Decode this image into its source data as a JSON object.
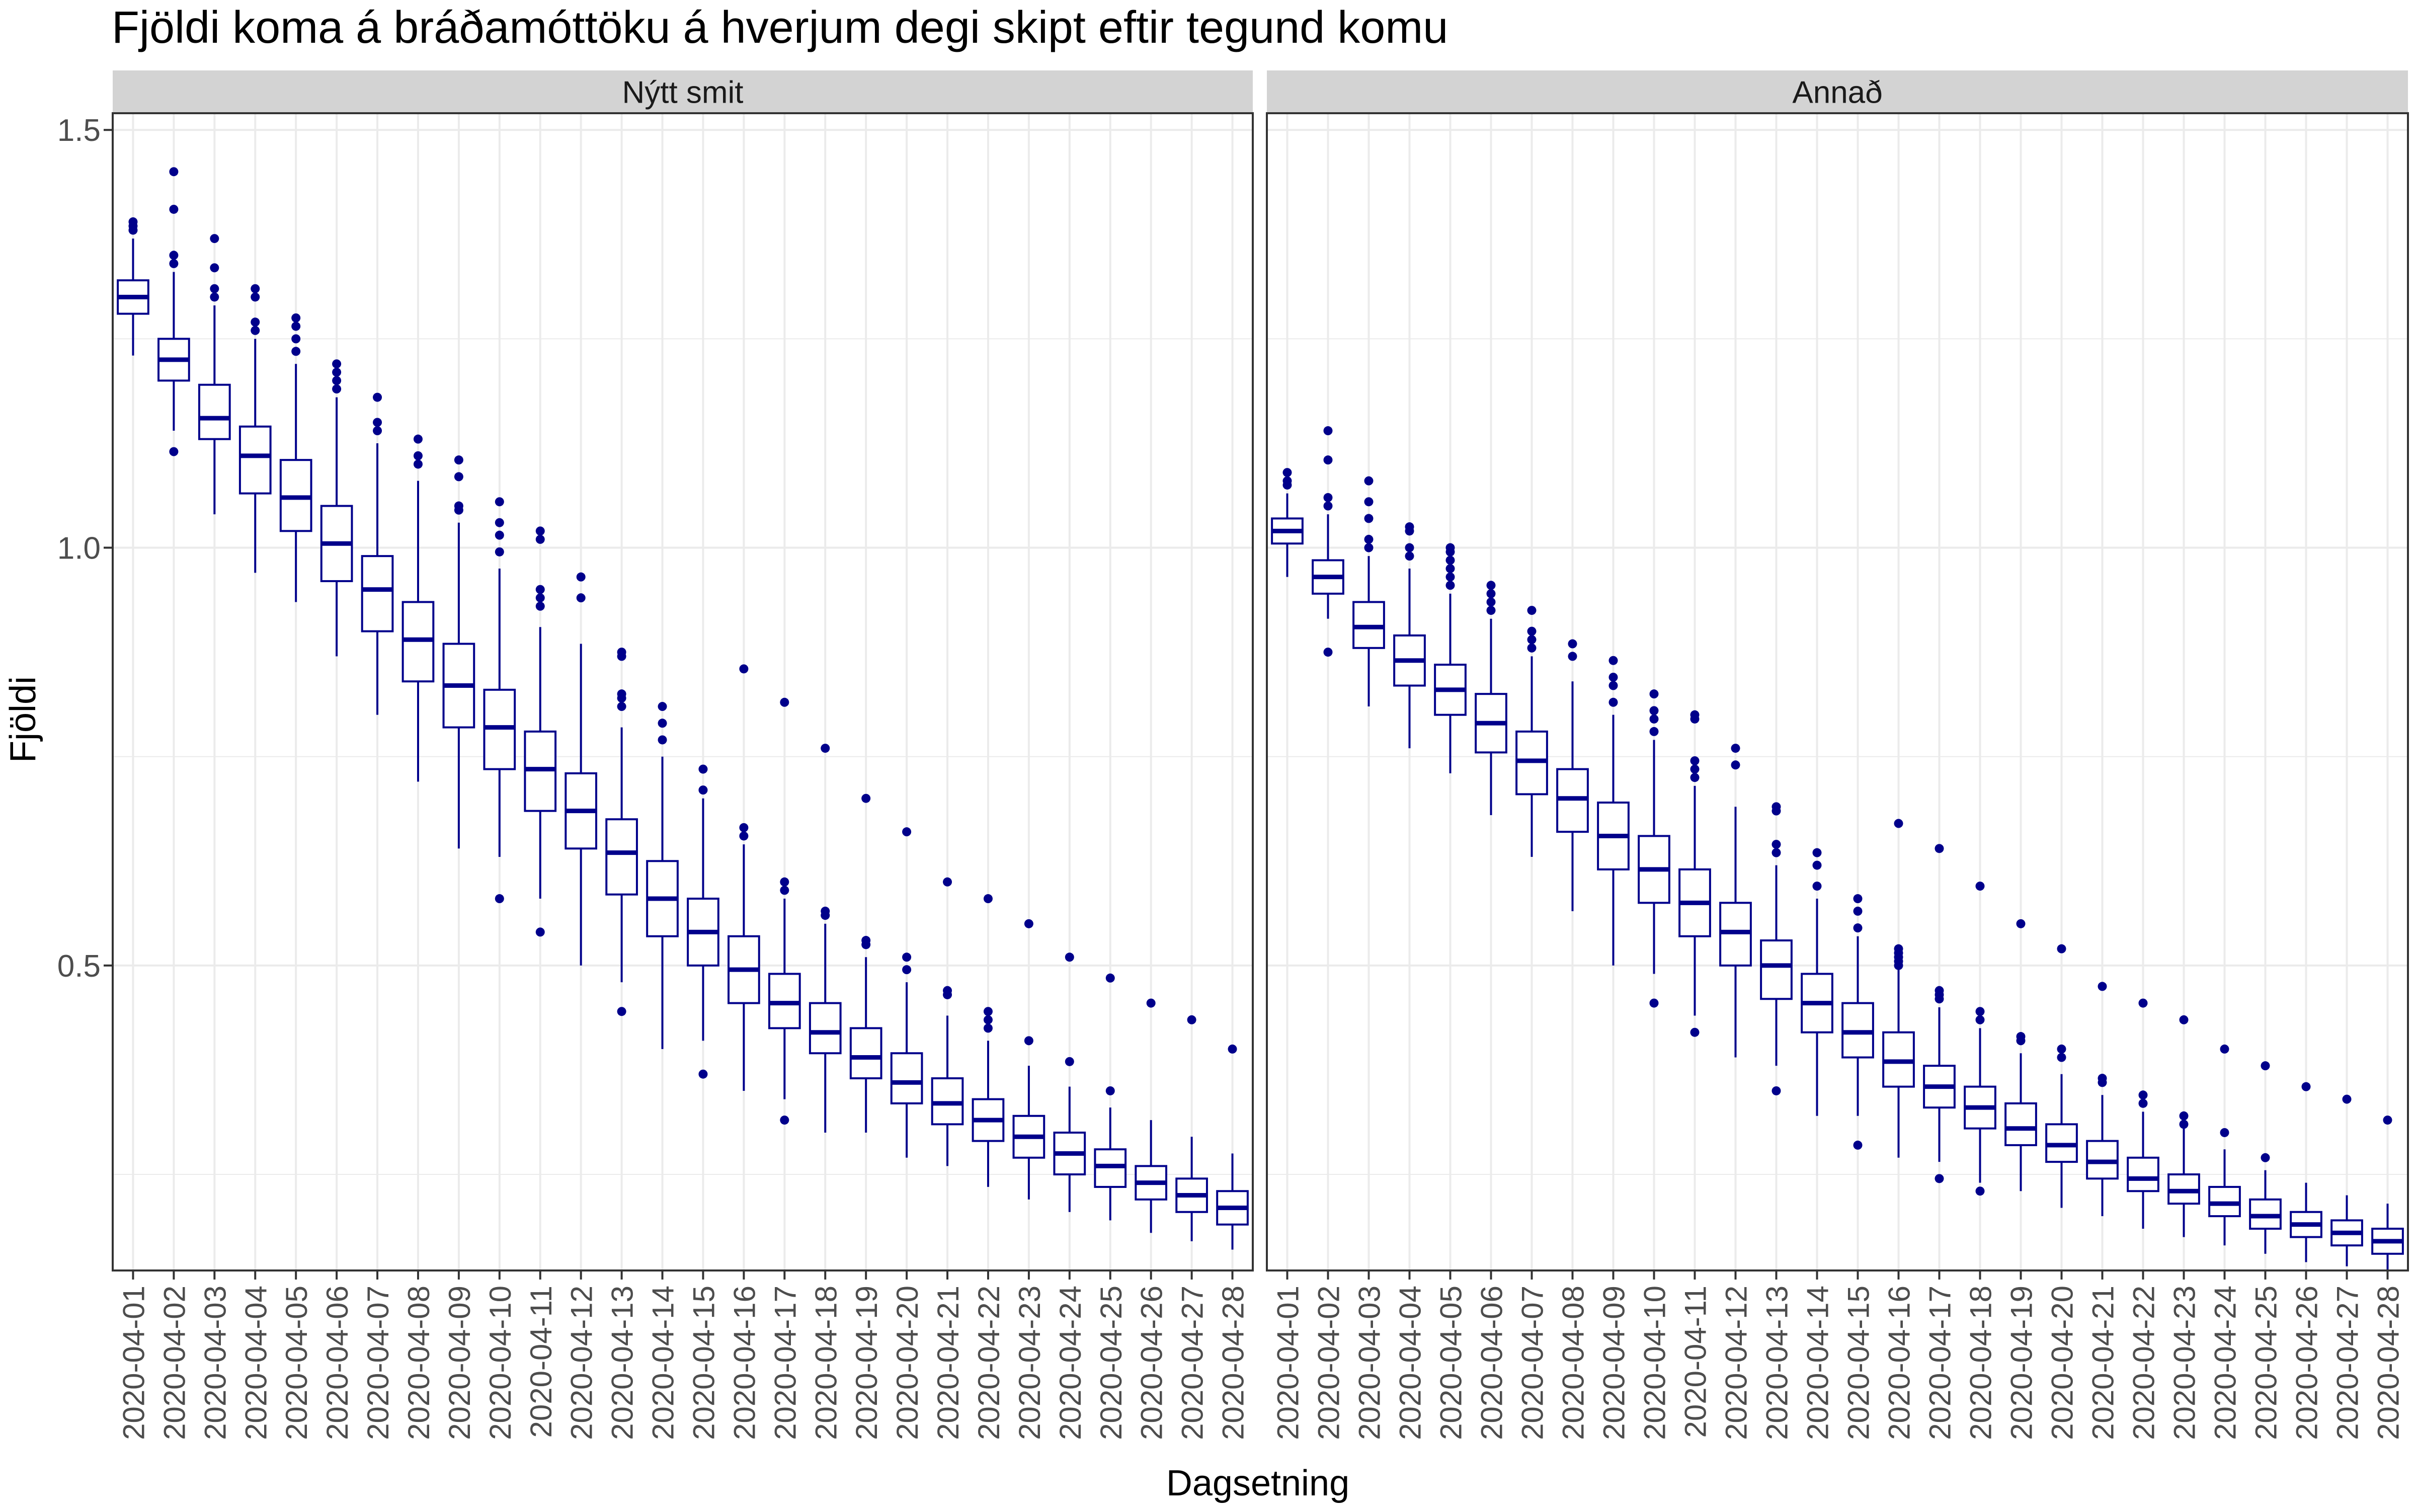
{
  "chart_data": {
    "type": "boxplot",
    "title": "Fjöldi koma á bráðamóttöku á hverjum degi skipt eftir tegund komu",
    "xlabel": "Dagsetning",
    "ylabel": "Fjöldi",
    "ylim": [
      0.135,
      1.52
    ],
    "yticks": [
      0.5,
      1.0,
      1.5
    ],
    "ytick_labels": [
      "0.5",
      "1.0",
      "1.5"
    ],
    "grid": true,
    "colors": {
      "box": "#00008B",
      "strip": "#d3d3d3",
      "grid": "#ebebeb",
      "panel_border": "#333333",
      "text": "#000000",
      "axis_text": "#4d4d4d"
    },
    "categories": [
      "2020-04-01",
      "2020-04-02",
      "2020-04-03",
      "2020-04-04",
      "2020-04-05",
      "2020-04-06",
      "2020-04-07",
      "2020-04-08",
      "2020-04-09",
      "2020-04-10",
      "2020-04-11",
      "2020-04-12",
      "2020-04-13",
      "2020-04-14",
      "2020-04-15",
      "2020-04-16",
      "2020-04-17",
      "2020-04-18",
      "2020-04-19",
      "2020-04-20",
      "2020-04-21",
      "2020-04-22",
      "2020-04-23",
      "2020-04-24",
      "2020-04-25",
      "2020-04-26",
      "2020-04-27",
      "2020-04-28"
    ],
    "panels": [
      {
        "name": "Nýtt smit",
        "boxes": [
          {
            "whisker_low": 1.23,
            "q1": 1.28,
            "median": 1.3,
            "q3": 1.32,
            "whisker_high": 1.37,
            "outliers": [
              1.38,
              1.385,
              1.39
            ]
          },
          {
            "whisker_low": 1.14,
            "q1": 1.2,
            "median": 1.225,
            "q3": 1.25,
            "whisker_high": 1.33,
            "outliers": [
              1.115,
              1.34,
              1.35,
              1.405,
              1.45
            ]
          },
          {
            "whisker_low": 1.04,
            "q1": 1.13,
            "median": 1.155,
            "q3": 1.195,
            "whisker_high": 1.29,
            "outliers": [
              1.3,
              1.31,
              1.335,
              1.37
            ]
          },
          {
            "whisker_low": 0.97,
            "q1": 1.065,
            "median": 1.11,
            "q3": 1.145,
            "whisker_high": 1.25,
            "outliers": [
              1.26,
              1.27,
              1.3,
              1.31
            ]
          },
          {
            "whisker_low": 0.935,
            "q1": 1.02,
            "median": 1.06,
            "q3": 1.105,
            "whisker_high": 1.22,
            "outliers": [
              1.235,
              1.25,
              1.265,
              1.275
            ]
          },
          {
            "whisker_low": 0.87,
            "q1": 0.96,
            "median": 1.005,
            "q3": 1.05,
            "whisker_high": 1.18,
            "outliers": [
              1.19,
              1.2,
              1.21,
              1.22
            ]
          },
          {
            "whisker_low": 0.8,
            "q1": 0.9,
            "median": 0.95,
            "q3": 0.99,
            "whisker_high": 1.125,
            "outliers": [
              1.14,
              1.15,
              1.18
            ]
          },
          {
            "whisker_low": 0.72,
            "q1": 0.84,
            "median": 0.89,
            "q3": 0.935,
            "whisker_high": 1.08,
            "outliers": [
              1.1,
              1.11,
              1.13
            ]
          },
          {
            "whisker_low": 0.64,
            "q1": 0.785,
            "median": 0.835,
            "q3": 0.885,
            "whisker_high": 1.03,
            "outliers": [
              1.045,
              1.05,
              1.085,
              1.105
            ]
          },
          {
            "whisker_low": 0.63,
            "q1": 0.735,
            "median": 0.785,
            "q3": 0.83,
            "whisker_high": 0.975,
            "outliers": [
              0.58,
              0.995,
              1.015,
              1.03,
              1.055
            ]
          },
          {
            "whisker_low": 0.58,
            "q1": 0.685,
            "median": 0.735,
            "q3": 0.78,
            "whisker_high": 0.905,
            "outliers": [
              0.54,
              0.93,
              0.94,
              0.95,
              1.01,
              1.02
            ]
          },
          {
            "whisker_low": 0.5,
            "q1": 0.64,
            "median": 0.685,
            "q3": 0.73,
            "whisker_high": 0.885,
            "outliers": [
              0.94,
              0.965
            ]
          },
          {
            "whisker_low": 0.48,
            "q1": 0.585,
            "median": 0.635,
            "q3": 0.675,
            "whisker_high": 0.785,
            "outliers": [
              0.445,
              0.81,
              0.82,
              0.825,
              0.87,
              0.875
            ]
          },
          {
            "whisker_low": 0.4,
            "q1": 0.535,
            "median": 0.58,
            "q3": 0.625,
            "whisker_high": 0.75,
            "outliers": [
              0.77,
              0.79,
              0.81
            ]
          },
          {
            "whisker_low": 0.41,
            "q1": 0.5,
            "median": 0.54,
            "q3": 0.58,
            "whisker_high": 0.7,
            "outliers": [
              0.37,
              0.71,
              0.735
            ]
          },
          {
            "whisker_low": 0.35,
            "q1": 0.455,
            "median": 0.495,
            "q3": 0.535,
            "whisker_high": 0.645,
            "outliers": [
              0.655,
              0.665,
              0.855
            ]
          },
          {
            "whisker_low": 0.34,
            "q1": 0.425,
            "median": 0.455,
            "q3": 0.49,
            "whisker_high": 0.58,
            "outliers": [
              0.315,
              0.59,
              0.6,
              0.815
            ]
          },
          {
            "whisker_low": 0.3,
            "q1": 0.395,
            "median": 0.42,
            "q3": 0.455,
            "whisker_high": 0.55,
            "outliers": [
              0.56,
              0.565,
              0.76
            ]
          },
          {
            "whisker_low": 0.3,
            "q1": 0.365,
            "median": 0.39,
            "q3": 0.425,
            "whisker_high": 0.51,
            "outliers": [
              0.525,
              0.53,
              0.7
            ]
          },
          {
            "whisker_low": 0.27,
            "q1": 0.335,
            "median": 0.36,
            "q3": 0.395,
            "whisker_high": 0.48,
            "outliers": [
              0.495,
              0.51,
              0.66
            ]
          },
          {
            "whisker_low": 0.26,
            "q1": 0.31,
            "median": 0.335,
            "q3": 0.365,
            "whisker_high": 0.44,
            "outliers": [
              0.465,
              0.47,
              0.6
            ]
          },
          {
            "whisker_low": 0.235,
            "q1": 0.29,
            "median": 0.315,
            "q3": 0.34,
            "whisker_high": 0.41,
            "outliers": [
              0.425,
              0.435,
              0.445,
              0.58
            ]
          },
          {
            "whisker_low": 0.22,
            "q1": 0.27,
            "median": 0.295,
            "q3": 0.32,
            "whisker_high": 0.38,
            "outliers": [
              0.41,
              0.55
            ]
          },
          {
            "whisker_low": 0.205,
            "q1": 0.25,
            "median": 0.275,
            "q3": 0.3,
            "whisker_high": 0.355,
            "outliers": [
              0.385,
              0.51
            ]
          },
          {
            "whisker_low": 0.195,
            "q1": 0.235,
            "median": 0.26,
            "q3": 0.28,
            "whisker_high": 0.33,
            "outliers": [
              0.35,
              0.485
            ]
          },
          {
            "whisker_low": 0.18,
            "q1": 0.22,
            "median": 0.24,
            "q3": 0.26,
            "whisker_high": 0.315,
            "outliers": [
              0.455
            ]
          },
          {
            "whisker_low": 0.17,
            "q1": 0.205,
            "median": 0.225,
            "q3": 0.245,
            "whisker_high": 0.295,
            "outliers": [
              0.435
            ]
          },
          {
            "whisker_low": 0.16,
            "q1": 0.19,
            "median": 0.21,
            "q3": 0.23,
            "whisker_high": 0.275,
            "outliers": [
              0.4
            ]
          }
        ]
      },
      {
        "name": "Annað",
        "boxes": [
          {
            "whisker_low": 0.965,
            "q1": 1.005,
            "median": 1.02,
            "q3": 1.035,
            "whisker_high": 1.065,
            "outliers": [
              1.075,
              1.08,
              1.09
            ]
          },
          {
            "whisker_low": 0.915,
            "q1": 0.945,
            "median": 0.965,
            "q3": 0.985,
            "whisker_high": 1.04,
            "outliers": [
              0.875,
              1.05,
              1.06,
              1.105,
              1.14
            ]
          },
          {
            "whisker_low": 0.81,
            "q1": 0.88,
            "median": 0.905,
            "q3": 0.935,
            "whisker_high": 0.99,
            "outliers": [
              1.0,
              1.01,
              1.035,
              1.055,
              1.08
            ]
          },
          {
            "whisker_low": 0.76,
            "q1": 0.835,
            "median": 0.865,
            "q3": 0.895,
            "whisker_high": 0.975,
            "outliers": [
              0.99,
              1.0,
              1.02,
              1.025
            ]
          },
          {
            "whisker_low": 0.73,
            "q1": 0.8,
            "median": 0.83,
            "q3": 0.86,
            "whisker_high": 0.945,
            "outliers": [
              0.955,
              0.965,
              0.975,
              0.985,
              0.995,
              1.0
            ]
          },
          {
            "whisker_low": 0.68,
            "q1": 0.755,
            "median": 0.79,
            "q3": 0.825,
            "whisker_high": 0.915,
            "outliers": [
              0.925,
              0.935,
              0.945,
              0.955
            ]
          },
          {
            "whisker_low": 0.63,
            "q1": 0.705,
            "median": 0.745,
            "q3": 0.78,
            "whisker_high": 0.87,
            "outliers": [
              0.88,
              0.89,
              0.9,
              0.925
            ]
          },
          {
            "whisker_low": 0.565,
            "q1": 0.66,
            "median": 0.7,
            "q3": 0.735,
            "whisker_high": 0.84,
            "outliers": [
              0.87,
              0.885
            ]
          },
          {
            "whisker_low": 0.5,
            "q1": 0.615,
            "median": 0.655,
            "q3": 0.695,
            "whisker_high": 0.8,
            "outliers": [
              0.815,
              0.835,
              0.845,
              0.865
            ]
          },
          {
            "whisker_low": 0.49,
            "q1": 0.575,
            "median": 0.615,
            "q3": 0.655,
            "whisker_high": 0.77,
            "outliers": [
              0.455,
              0.78,
              0.795,
              0.805,
              0.825
            ]
          },
          {
            "whisker_low": 0.44,
            "q1": 0.535,
            "median": 0.575,
            "q3": 0.615,
            "whisker_high": 0.715,
            "outliers": [
              0.42,
              0.725,
              0.735,
              0.745,
              0.795,
              0.8
            ]
          },
          {
            "whisker_low": 0.39,
            "q1": 0.5,
            "median": 0.54,
            "q3": 0.575,
            "whisker_high": 0.69,
            "outliers": [
              0.74,
              0.76
            ]
          },
          {
            "whisker_low": 0.38,
            "q1": 0.46,
            "median": 0.5,
            "q3": 0.53,
            "whisker_high": 0.62,
            "outliers": [
              0.35,
              0.635,
              0.645,
              0.685,
              0.69
            ]
          },
          {
            "whisker_low": 0.32,
            "q1": 0.42,
            "median": 0.455,
            "q3": 0.49,
            "whisker_high": 0.58,
            "outliers": [
              0.595,
              0.62,
              0.635
            ]
          },
          {
            "whisker_low": 0.32,
            "q1": 0.39,
            "median": 0.42,
            "q3": 0.455,
            "whisker_high": 0.535,
            "outliers": [
              0.285,
              0.545,
              0.565,
              0.58
            ]
          },
          {
            "whisker_low": 0.27,
            "q1": 0.355,
            "median": 0.385,
            "q3": 0.42,
            "whisker_high": 0.495,
            "outliers": [
              0.5,
              0.505,
              0.51,
              0.515,
              0.52,
              0.67
            ]
          },
          {
            "whisker_low": 0.265,
            "q1": 0.33,
            "median": 0.355,
            "q3": 0.38,
            "whisker_high": 0.45,
            "outliers": [
              0.245,
              0.46,
              0.465,
              0.47,
              0.64
            ]
          },
          {
            "whisker_low": 0.24,
            "q1": 0.305,
            "median": 0.33,
            "q3": 0.355,
            "whisker_high": 0.425,
            "outliers": [
              0.23,
              0.435,
              0.445,
              0.595
            ]
          },
          {
            "whisker_low": 0.23,
            "q1": 0.285,
            "median": 0.305,
            "q3": 0.335,
            "whisker_high": 0.395,
            "outliers": [
              0.41,
              0.415,
              0.55
            ]
          },
          {
            "whisker_low": 0.21,
            "q1": 0.265,
            "median": 0.285,
            "q3": 0.31,
            "whisker_high": 0.37,
            "outliers": [
              0.39,
              0.4,
              0.52
            ]
          },
          {
            "whisker_low": 0.2,
            "q1": 0.245,
            "median": 0.265,
            "q3": 0.29,
            "whisker_high": 0.345,
            "outliers": [
              0.36,
              0.365,
              0.475
            ]
          },
          {
            "whisker_low": 0.185,
            "q1": 0.23,
            "median": 0.245,
            "q3": 0.27,
            "whisker_high": 0.325,
            "outliers": [
              0.335,
              0.345,
              0.455
            ]
          },
          {
            "whisker_low": 0.175,
            "q1": 0.215,
            "median": 0.23,
            "q3": 0.25,
            "whisker_high": 0.305,
            "outliers": [
              0.31,
              0.32,
              0.435
            ]
          },
          {
            "whisker_low": 0.165,
            "q1": 0.2,
            "median": 0.215,
            "q3": 0.235,
            "whisker_high": 0.28,
            "outliers": [
              0.3,
              0.4
            ]
          },
          {
            "whisker_low": 0.155,
            "q1": 0.185,
            "median": 0.2,
            "q3": 0.22,
            "whisker_high": 0.255,
            "outliers": [
              0.27,
              0.38
            ]
          },
          {
            "whisker_low": 0.145,
            "q1": 0.175,
            "median": 0.19,
            "q3": 0.205,
            "whisker_high": 0.24,
            "outliers": [
              0.355
            ]
          },
          {
            "whisker_low": 0.14,
            "q1": 0.165,
            "median": 0.18,
            "q3": 0.195,
            "whisker_high": 0.225,
            "outliers": [
              0.34
            ]
          },
          {
            "whisker_low": 0.135,
            "q1": 0.155,
            "median": 0.17,
            "q3": 0.185,
            "whisker_high": 0.215,
            "outliers": [
              0.315
            ]
          }
        ]
      }
    ]
  }
}
